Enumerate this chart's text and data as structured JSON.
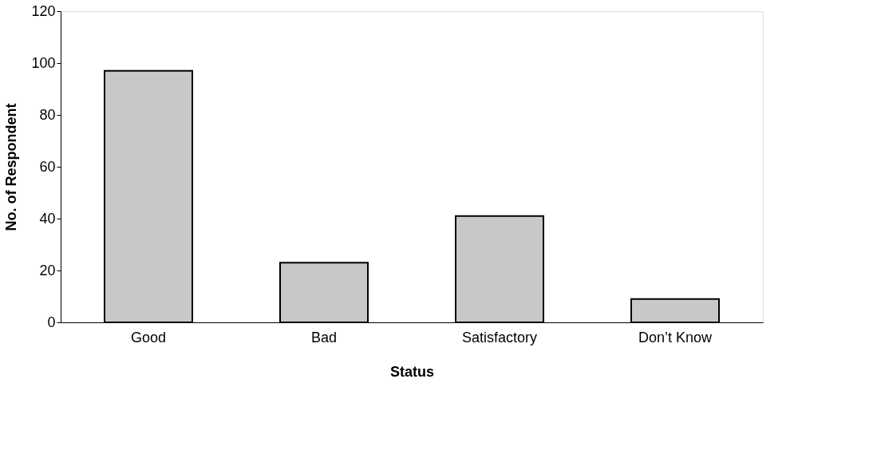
{
  "chart_data": {
    "type": "bar",
    "xlabel": "Status",
    "ylabel": "No. of Respondent",
    "categories": [
      "Good",
      "Bad",
      "Satisfactory",
      "Don’t Know"
    ],
    "values": [
      97,
      23,
      41,
      9
    ],
    "color": "#c8c8c8",
    "ylim": [
      0,
      120
    ],
    "yticks": [
      0,
      20,
      40,
      60,
      80,
      100,
      120
    ],
    "grid": false
  }
}
